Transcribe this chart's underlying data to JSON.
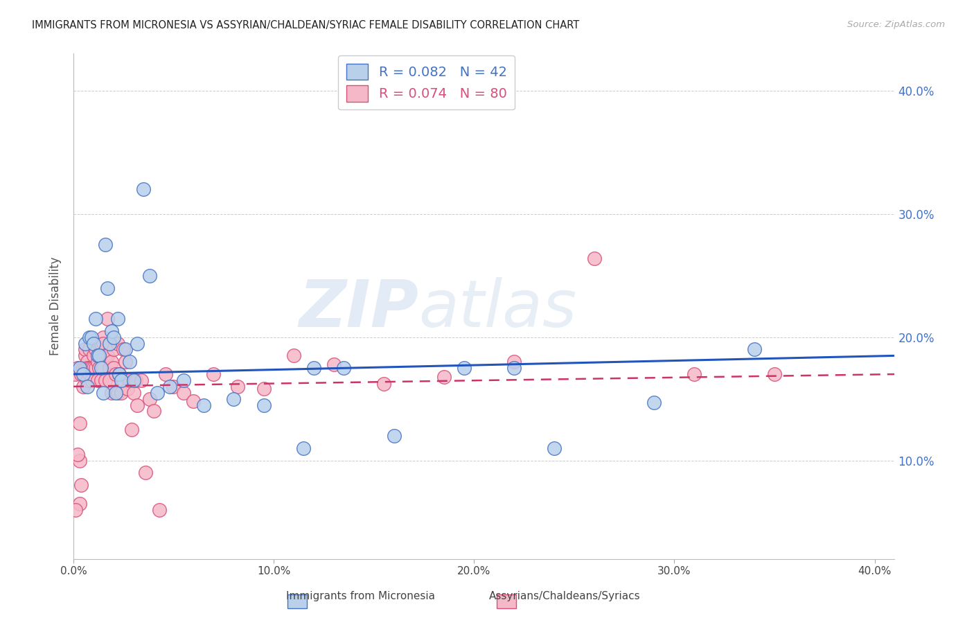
{
  "title": "IMMIGRANTS FROM MICRONESIA VS ASSYRIAN/CHALDEAN/SYRIAC FEMALE DISABILITY CORRELATION CHART",
  "source": "Source: ZipAtlas.com",
  "ylabel": "Female Disability",
  "yticks_labels": [
    "40.0%",
    "30.0%",
    "20.0%",
    "10.0%"
  ],
  "yticks_vals": [
    0.4,
    0.3,
    0.2,
    0.1
  ],
  "xticks_labels": [
    "0.0%",
    "10.0%",
    "20.0%",
    "30.0%",
    "40.0%"
  ],
  "xticks_vals": [
    0.0,
    0.1,
    0.2,
    0.3,
    0.4
  ],
  "xlim": [
    0.0,
    0.41
  ],
  "ylim": [
    0.02,
    0.43
  ],
  "blue_R": "0.082",
  "blue_N": "42",
  "pink_R": "0.074",
  "pink_N": "80",
  "blue_face": "#b8d0ea",
  "blue_edge": "#4472c4",
  "pink_face": "#f5b8c8",
  "pink_edge": "#d94f7a",
  "blue_line_color": "#2255bb",
  "pink_line_color": "#cc3366",
  "legend_blue": "Immigrants from Micronesia",
  "legend_pink": "Assyrians/Chaldeans/Syriacs",
  "watermark_zip": "ZIP",
  "watermark_atlas": "atlas",
  "blue_line_x0": 0.0,
  "blue_line_y0": 0.17,
  "blue_line_x1": 0.41,
  "blue_line_y1": 0.185,
  "pink_line_x0": 0.0,
  "pink_line_y0": 0.16,
  "pink_line_x1": 0.41,
  "pink_line_y1": 0.17,
  "blue_x": [
    0.003,
    0.005,
    0.006,
    0.007,
    0.008,
    0.009,
    0.01,
    0.011,
    0.012,
    0.013,
    0.014,
    0.015,
    0.016,
    0.017,
    0.018,
    0.019,
    0.02,
    0.021,
    0.022,
    0.023,
    0.024,
    0.026,
    0.028,
    0.03,
    0.032,
    0.035,
    0.038,
    0.042,
    0.048,
    0.055,
    0.065,
    0.08,
    0.095,
    0.115,
    0.135,
    0.16,
    0.195,
    0.24,
    0.29,
    0.34,
    0.22,
    0.12
  ],
  "blue_y": [
    0.175,
    0.17,
    0.195,
    0.16,
    0.2,
    0.2,
    0.195,
    0.215,
    0.185,
    0.185,
    0.175,
    0.155,
    0.275,
    0.24,
    0.195,
    0.205,
    0.2,
    0.155,
    0.215,
    0.17,
    0.165,
    0.19,
    0.18,
    0.165,
    0.195,
    0.32,
    0.25,
    0.155,
    0.16,
    0.165,
    0.145,
    0.15,
    0.145,
    0.11,
    0.175,
    0.12,
    0.175,
    0.11,
    0.147,
    0.19,
    0.175,
    0.175
  ],
  "pink_x": [
    0.001,
    0.002,
    0.003,
    0.003,
    0.004,
    0.004,
    0.005,
    0.005,
    0.006,
    0.006,
    0.006,
    0.007,
    0.007,
    0.007,
    0.008,
    0.008,
    0.008,
    0.009,
    0.009,
    0.01,
    0.01,
    0.01,
    0.011,
    0.011,
    0.012,
    0.012,
    0.013,
    0.013,
    0.014,
    0.014,
    0.015,
    0.015,
    0.015,
    0.016,
    0.016,
    0.017,
    0.017,
    0.018,
    0.018,
    0.019,
    0.019,
    0.02,
    0.02,
    0.021,
    0.022,
    0.022,
    0.023,
    0.024,
    0.025,
    0.025,
    0.026,
    0.027,
    0.028,
    0.029,
    0.03,
    0.031,
    0.032,
    0.034,
    0.036,
    0.038,
    0.04,
    0.043,
    0.046,
    0.05,
    0.055,
    0.06,
    0.07,
    0.082,
    0.095,
    0.11,
    0.13,
    0.155,
    0.185,
    0.22,
    0.26,
    0.31,
    0.003,
    0.002,
    0.001,
    0.35
  ],
  "pink_y": [
    0.17,
    0.175,
    0.065,
    0.13,
    0.08,
    0.17,
    0.16,
    0.175,
    0.185,
    0.175,
    0.19,
    0.165,
    0.18,
    0.175,
    0.17,
    0.175,
    0.19,
    0.165,
    0.175,
    0.195,
    0.175,
    0.185,
    0.175,
    0.19,
    0.165,
    0.18,
    0.175,
    0.195,
    0.195,
    0.165,
    0.2,
    0.195,
    0.175,
    0.185,
    0.165,
    0.185,
    0.215,
    0.175,
    0.165,
    0.18,
    0.155,
    0.19,
    0.175,
    0.17,
    0.195,
    0.155,
    0.17,
    0.155,
    0.19,
    0.165,
    0.18,
    0.158,
    0.165,
    0.125,
    0.155,
    0.165,
    0.145,
    0.165,
    0.09,
    0.15,
    0.14,
    0.06,
    0.17,
    0.16,
    0.155,
    0.148,
    0.17,
    0.16,
    0.158,
    0.185,
    0.178,
    0.162,
    0.168,
    0.18,
    0.264,
    0.17,
    0.1,
    0.105,
    0.06,
    0.17
  ]
}
